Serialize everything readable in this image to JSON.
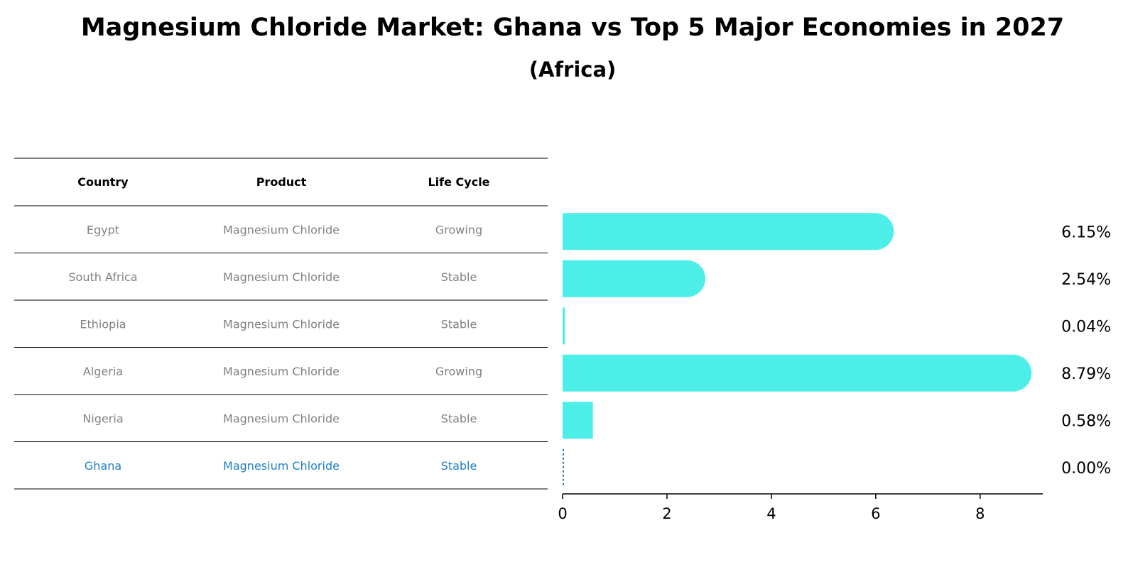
{
  "title": "Magnesium Chloride Market: Ghana vs Top 5 Major Economies in 2027",
  "subtitle": "(Africa)",
  "colors": {
    "bar": "#4deee8",
    "text_muted": "#808080",
    "highlight": "#1f7fc6",
    "rule": "#000000"
  },
  "table": {
    "headers": [
      "Country",
      "Product",
      "Life Cycle"
    ],
    "rows": [
      {
        "country": "Egypt",
        "product": "Magnesium Chloride",
        "life_cycle": "Growing",
        "highlight": false
      },
      {
        "country": "South Africa",
        "product": "Magnesium Chloride",
        "life_cycle": "Stable",
        "highlight": false
      },
      {
        "country": "Ethiopia",
        "product": "Magnesium Chloride",
        "life_cycle": "Stable",
        "highlight": false
      },
      {
        "country": "Algeria",
        "product": "Magnesium Chloride",
        "life_cycle": "Growing",
        "highlight": false
      },
      {
        "country": "Nigeria",
        "product": "Magnesium Chloride",
        "life_cycle": "Stable",
        "highlight": false
      },
      {
        "country": "Ghana",
        "product": "Magnesium Chloride",
        "life_cycle": "Stable",
        "highlight": true
      }
    ]
  },
  "chart_data": {
    "type": "bar",
    "orientation": "horizontal",
    "categories": [
      "Egypt",
      "South Africa",
      "Ethiopia",
      "Algeria",
      "Nigeria",
      "Ghana"
    ],
    "values": [
      6.15,
      2.54,
      0.04,
      8.79,
      0.58,
      0.0
    ],
    "value_labels": [
      "6.15%",
      "2.54%",
      "0.04%",
      "8.79%",
      "0.58%",
      "0.00%"
    ],
    "xlim": [
      0,
      9.2
    ],
    "xticks": [
      0,
      2,
      4,
      6,
      8
    ],
    "xtick_labels": [
      "0",
      "2",
      "4",
      "6",
      "8"
    ],
    "grid": false,
    "bar_style": "rounded end caps; zero-value bar drawn as dotted line"
  }
}
